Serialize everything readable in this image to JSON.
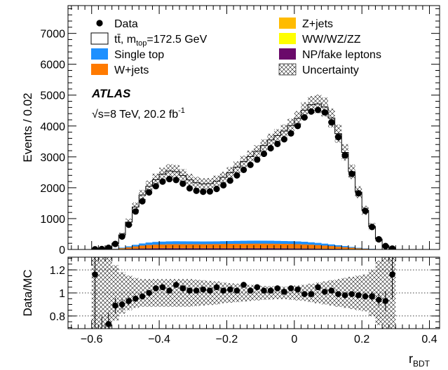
{
  "chart_data": [
    {
      "type": "histogram",
      "panel": "main",
      "ylabel": "Events / 0.02",
      "xlim": [
        -0.67,
        0.43
      ],
      "ylim": [
        0,
        7900
      ],
      "yticks": [
        0,
        1000,
        2000,
        3000,
        4000,
        5000,
        6000,
        7000
      ],
      "bin_width": 0.02,
      "bin_centers": [
        -0.59,
        -0.57,
        -0.55,
        -0.53,
        -0.51,
        -0.49,
        -0.47,
        -0.45,
        -0.43,
        -0.41,
        -0.39,
        -0.37,
        -0.35,
        -0.33,
        -0.31,
        -0.29,
        -0.27,
        -0.25,
        -0.23,
        -0.21,
        -0.19,
        -0.17,
        -0.15,
        -0.13,
        -0.11,
        -0.09,
        -0.07,
        -0.05,
        -0.03,
        -0.01,
        0.01,
        0.03,
        0.05,
        0.07,
        0.09,
        0.11,
        0.13,
        0.15,
        0.17,
        0.19,
        0.21,
        0.23,
        0.25,
        0.27,
        0.29
      ],
      "series": [
        {
          "name": "Data",
          "style": "points",
          "color": "#000000",
          "values": [
            5,
            15,
            55,
            180,
            420,
            800,
            1230,
            1560,
            1850,
            2050,
            2200,
            2280,
            2250,
            2130,
            1980,
            1900,
            1870,
            1880,
            1960,
            2080,
            2230,
            2400,
            2580,
            2740,
            2910,
            3100,
            3280,
            3420,
            3570,
            3760,
            4000,
            4280,
            4470,
            4520,
            4440,
            4120,
            3640,
            3050,
            2450,
            1820,
            1250,
            730,
            330,
            110,
            30
          ]
        },
        {
          "name": "tt̄, m_top=172.5 GeV",
          "style": "stack",
          "color": "#ffffff",
          "values": [
            5,
            14,
            52,
            175,
            412,
            790,
            1230,
            1575,
            1825,
            2020,
            2190,
            2285,
            2260,
            2140,
            1995,
            1908,
            1872,
            1880,
            1955,
            2075,
            2220,
            2395,
            2570,
            2730,
            2900,
            3090,
            3270,
            3420,
            3570,
            3750,
            3990,
            4270,
            4460,
            4510,
            4430,
            4100,
            3620,
            3040,
            2440,
            1810,
            1240,
            730,
            330,
            112,
            30
          ]
        },
        {
          "name": "Single top",
          "style": "stack",
          "color": "#1e90ff",
          "values": [
            0,
            0,
            2,
            8,
            20,
            35,
            55,
            70,
            80,
            88,
            92,
            95,
            95,
            94,
            92,
            90,
            88,
            87,
            88,
            90,
            92,
            94,
            96,
            98,
            98,
            97,
            96,
            94,
            92,
            90,
            88,
            84,
            78,
            72,
            64,
            56,
            48,
            38,
            28,
            18,
            10,
            5,
            2,
            0,
            0
          ]
        },
        {
          "name": "W+jets",
          "style": "stack",
          "color": "#ff7a00",
          "values": [
            0,
            0,
            2,
            8,
            22,
            40,
            60,
            80,
            95,
            105,
            110,
            115,
            118,
            118,
            118,
            118,
            118,
            120,
            122,
            125,
            128,
            130,
            132,
            134,
            135,
            135,
            134,
            132,
            130,
            128,
            125,
            120,
            112,
            102,
            90,
            78,
            64,
            50,
            36,
            22,
            12,
            6,
            2,
            0,
            0
          ]
        },
        {
          "name": "Z+jets",
          "style": "stack",
          "color": "#ffbb00",
          "values": [
            0,
            0,
            0,
            1,
            3,
            5,
            7,
            9,
            10,
            10,
            10,
            10,
            10,
            10,
            10,
            10,
            10,
            10,
            10,
            10,
            10,
            10,
            10,
            10,
            10,
            10,
            10,
            10,
            10,
            10,
            10,
            9,
            9,
            8,
            7,
            6,
            5,
            4,
            3,
            2,
            1,
            1,
            0,
            0,
            0
          ]
        },
        {
          "name": "WW/WZ/ZZ",
          "style": "stack",
          "color": "#ffff00",
          "values": [
            0,
            0,
            0,
            0,
            1,
            1,
            2,
            2,
            2,
            2,
            2,
            2,
            2,
            2,
            2,
            2,
            2,
            2,
            2,
            2,
            2,
            2,
            2,
            2,
            2,
            2,
            2,
            2,
            2,
            2,
            2,
            2,
            2,
            2,
            2,
            2,
            1,
            1,
            1,
            1,
            0,
            0,
            0,
            0,
            0
          ]
        },
        {
          "name": "NP/fake leptons",
          "style": "stack",
          "color": "#6a0a6a",
          "values": [
            0,
            0,
            1,
            3,
            8,
            14,
            22,
            28,
            32,
            34,
            35,
            35,
            35,
            35,
            35,
            35,
            35,
            35,
            35,
            35,
            35,
            35,
            35,
            35,
            35,
            35,
            35,
            34,
            33,
            32,
            30,
            28,
            26,
            23,
            20,
            17,
            14,
            11,
            8,
            5,
            3,
            1,
            0,
            0,
            0
          ]
        }
      ],
      "legend": {
        "entries": [
          {
            "label": "Data",
            "kind": "marker"
          },
          {
            "label": "tt̄, m",
            "sub": "top",
            "tail": "=172.5 GeV",
            "kind": "box-white"
          },
          {
            "label": "Single top",
            "kind": "fill",
            "color": "#1e90ff"
          },
          {
            "label": "W+jets",
            "kind": "fill",
            "color": "#ff7a00"
          },
          {
            "label": "Z+jets",
            "kind": "fill",
            "color": "#ffbb00"
          },
          {
            "label": "WW/WZ/ZZ",
            "kind": "fill",
            "color": "#ffff00"
          },
          {
            "label": "NP/fake leptons",
            "kind": "fill",
            "color": "#6a0a6a"
          },
          {
            "label": "Uncertainty",
            "kind": "hatch"
          }
        ],
        "placement": "top"
      },
      "annotations": {
        "experiment": "ATLAS",
        "energy": "√s=8 TeV, 20.2 fb",
        "lumi_sup": "-1"
      }
    },
    {
      "type": "scatter",
      "panel": "ratio",
      "ylabel": "Data/MC",
      "xlabel": "r",
      "xlabel_sub": "BDT",
      "xlim": [
        -0.67,
        0.43
      ],
      "ylim": [
        0.69,
        1.31
      ],
      "yticks": [
        0.8,
        1,
        1.2
      ],
      "ytick_labels": [
        "0.8",
        "1",
        "1.2"
      ],
      "xticks": [
        -0.6,
        -0.4,
        -0.2,
        0,
        0.2,
        0.4
      ],
      "xtick_labels": [
        "−0.6",
        "−0.4",
        "−0.2",
        "0",
        "0.2",
        "0.4"
      ],
      "reference_lines": [
        0.8,
        1.0,
        1.2
      ],
      "grid": "dotted horizontal",
      "x": [
        -0.59,
        -0.57,
        -0.55,
        -0.53,
        -0.51,
        -0.49,
        -0.47,
        -0.45,
        -0.43,
        -0.41,
        -0.39,
        -0.37,
        -0.35,
        -0.33,
        -0.31,
        -0.29,
        -0.27,
        -0.25,
        -0.23,
        -0.21,
        -0.19,
        -0.17,
        -0.15,
        -0.13,
        -0.11,
        -0.09,
        -0.07,
        -0.05,
        -0.03,
        -0.01,
        0.01,
        0.03,
        0.05,
        0.07,
        0.09,
        0.11,
        0.13,
        0.15,
        0.17,
        0.19,
        0.21,
        0.23,
        0.25,
        0.27,
        0.29
      ],
      "values": [
        1.16,
        0.63,
        0.73,
        0.89,
        0.9,
        0.93,
        0.95,
        0.97,
        1.0,
        1.04,
        1.05,
        1.02,
        1.07,
        1.04,
        1.02,
        1.02,
        1.03,
        1.02,
        1.05,
        1.02,
        1.03,
        1.02,
        1.07,
        1.02,
        1.05,
        1.02,
        1.02,
        1.04,
        1.01,
        1.04,
        1.03,
        0.99,
        0.99,
        1.05,
        1.01,
        1.02,
        0.99,
        0.98,
        0.99,
        0.98,
        0.97,
        0.97,
        0.94,
        0.93,
        1.16
      ],
      "uncertainty_band": [
        0.45,
        0.42,
        0.33,
        0.24,
        0.18,
        0.15,
        0.13,
        0.12,
        0.12,
        0.12,
        0.12,
        0.12,
        0.12,
        0.12,
        0.12,
        0.115,
        0.11,
        0.105,
        0.1,
        0.09,
        0.085,
        0.08,
        0.075,
        0.07,
        0.065,
        0.06,
        0.058,
        0.055,
        0.055,
        0.06,
        0.065,
        0.07,
        0.08,
        0.09,
        0.1,
        0.11,
        0.12,
        0.13,
        0.14,
        0.15,
        0.16,
        0.2,
        0.28,
        0.38,
        0.45
      ]
    }
  ],
  "colors": {
    "data": "#000000",
    "axis": "#000000",
    "grid": "#000000"
  }
}
